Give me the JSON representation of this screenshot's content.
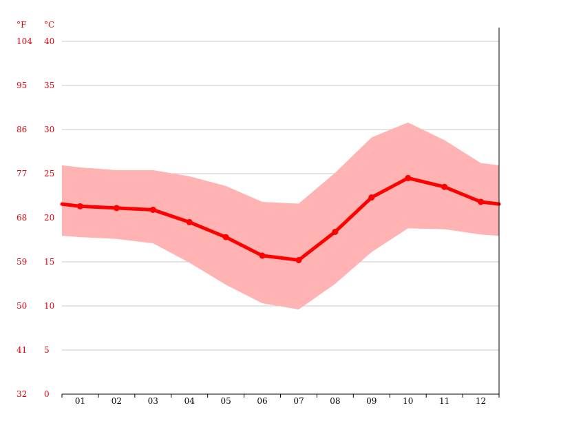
{
  "chart_data": {
    "type": "line",
    "title": "",
    "units": {
      "fahrenheit": "°F",
      "celsius": "°C"
    },
    "categories": [
      "01",
      "02",
      "03",
      "04",
      "05",
      "06",
      "07",
      "08",
      "09",
      "10",
      "11",
      "12"
    ],
    "ylim_celsius": [
      0,
      40
    ],
    "y_ticks_celsius": [
      "0",
      "5",
      "10",
      "15",
      "20",
      "25",
      "30",
      "35",
      "40"
    ],
    "y_ticks_fahrenheit": [
      "32",
      "41",
      "50",
      "59",
      "68",
      "77",
      "86",
      "95",
      "104"
    ],
    "grid": true,
    "series": [
      {
        "kind": "mean",
        "values": [
          21.3,
          21.1,
          20.9,
          19.5,
          17.8,
          15.7,
          15.2,
          18.4,
          22.3,
          24.5,
          23.5,
          21.8
        ]
      },
      {
        "kind": "max",
        "values": [
          25.7,
          25.4,
          25.4,
          24.7,
          23.6,
          21.8,
          21.6,
          25.1,
          29.1,
          30.8,
          28.8,
          26.2
        ]
      },
      {
        "kind": "min",
        "values": [
          17.8,
          17.6,
          17.1,
          14.9,
          12.4,
          10.3,
          9.6,
          12.5,
          16.1,
          18.8,
          18.7,
          18.1
        ]
      }
    ],
    "colors": {
      "line": "#ff0000",
      "band": "#ffb3b3",
      "axis_text": "#e8000b"
    }
  }
}
